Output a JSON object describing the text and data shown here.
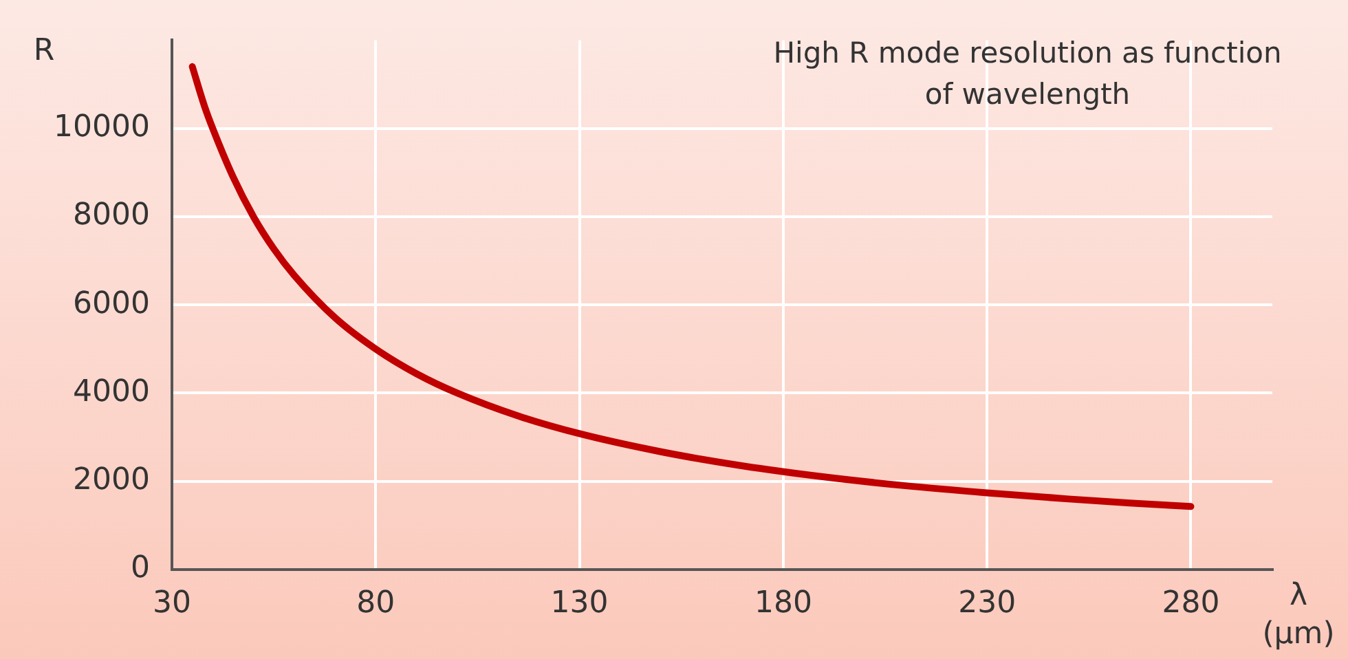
{
  "chart_data": {
    "type": "line",
    "xlabel": "λ (μm)",
    "ylabel": "R",
    "annotations": [
      "High R mode resolution as function of wavelength"
    ],
    "x": [
      35,
      38,
      40,
      45,
      50,
      55,
      60,
      70,
      80,
      90,
      100,
      115,
      130,
      150,
      170,
      190,
      210,
      230,
      250,
      265,
      280
    ],
    "series": [
      {
        "color": "#c00000",
        "values": [
          11400,
          10500,
          10000,
          8900,
          8000,
          7270,
          6670,
          5710,
          5000,
          4440,
          4000,
          3480,
          3080,
          2670,
          2350,
          2100,
          1900,
          1740,
          1600,
          1510,
          1430
        ]
      }
    ],
    "xlim": [
      30,
      300
    ],
    "xticks": [
      30,
      80,
      130,
      180,
      230,
      280
    ],
    "ylim": [
      0,
      12000
    ],
    "yticks": [
      0,
      2000,
      4000,
      6000,
      8000,
      10000
    ],
    "grid": true,
    "legend": false,
    "marker": "none",
    "line_style": "solid"
  }
}
